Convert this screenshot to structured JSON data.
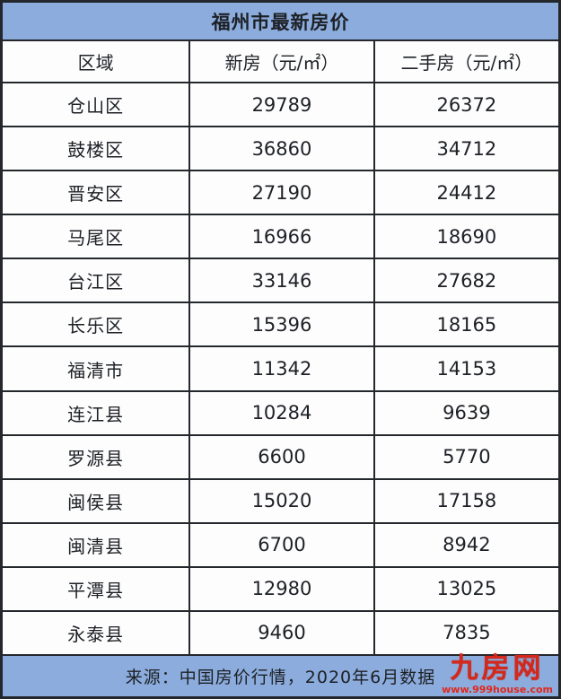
{
  "chart_data": {
    "type": "table",
    "title": "福州市最新房价",
    "columns": [
      "区域",
      "新房（元/㎡）",
      "二手房（元/㎡）"
    ],
    "rows": [
      {
        "district": "仓山区",
        "new_home": "29789",
        "second_hand": "26372"
      },
      {
        "district": "鼓楼区",
        "new_home": "36860",
        "second_hand": "34712"
      },
      {
        "district": "晋安区",
        "new_home": "27190",
        "second_hand": "24412"
      },
      {
        "district": "马尾区",
        "new_home": "16966",
        "second_hand": "18690"
      },
      {
        "district": "台江区",
        "new_home": "33146",
        "second_hand": "27682"
      },
      {
        "district": "长乐区",
        "new_home": "15396",
        "second_hand": "18165"
      },
      {
        "district": "福清市",
        "new_home": "11342",
        "second_hand": "14153"
      },
      {
        "district": "连江县",
        "new_home": "10284",
        "second_hand": "9639"
      },
      {
        "district": "罗源县",
        "new_home": "6600",
        "second_hand": "5770"
      },
      {
        "district": "闽侯县",
        "new_home": "15020",
        "second_hand": "17158"
      },
      {
        "district": "闽清县",
        "new_home": "6700",
        "second_hand": "8942"
      },
      {
        "district": "平潭县",
        "new_home": "12980",
        "second_hand": "13025"
      },
      {
        "district": "永泰县",
        "new_home": "9460",
        "second_hand": "7835"
      }
    ],
    "source_note": "来源：中国房价行情，2020年6月数据"
  },
  "watermark": {
    "site_name": "九房网",
    "site_url": "www.999house.com"
  },
  "colors": {
    "band_blue": "#8bacdc",
    "border_dark": "#24272c",
    "text_dark": "#1d2025",
    "watermark_red": "#d5281c"
  }
}
